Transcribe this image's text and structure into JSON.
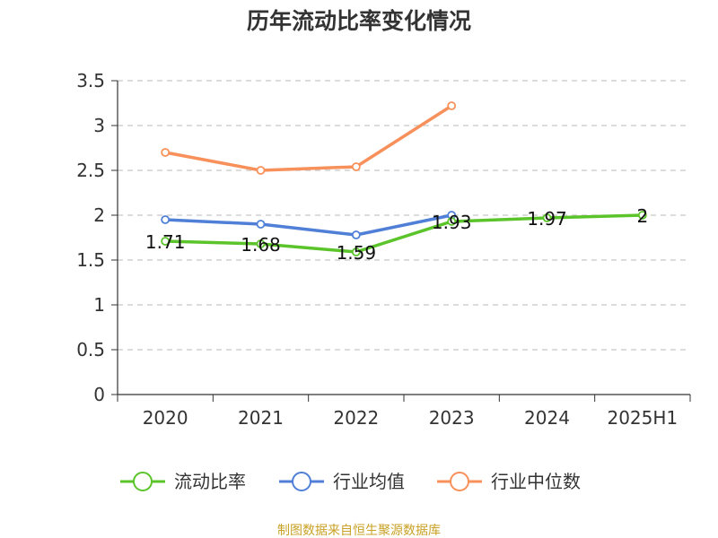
{
  "chart_data": {
    "type": "line",
    "title": "历年流动比率变化情况",
    "categories": [
      "2020",
      "2021",
      "2022",
      "2023",
      "2024",
      "2025H1"
    ],
    "ylim": [
      0,
      3.5
    ],
    "yticks": [
      "0",
      "0.5",
      "1",
      "1.5",
      "2",
      "2.5",
      "3",
      "3.5"
    ],
    "grid": true,
    "legend_position": "bottom",
    "series": [
      {
        "name": "流动比率",
        "color": "#5cc42b",
        "values": [
          1.71,
          1.68,
          1.59,
          1.93,
          1.97,
          2.0
        ],
        "labels": [
          "1.71",
          "1.68",
          "1.59",
          "1.93",
          "1.97",
          "2"
        ]
      },
      {
        "name": "行业均值",
        "color": "#4f7fd6",
        "values": [
          1.95,
          1.9,
          1.78,
          2.0,
          null,
          null
        ]
      },
      {
        "name": "行业中位数",
        "color": "#f7905a",
        "values": [
          2.7,
          2.5,
          2.54,
          3.22,
          null,
          null
        ]
      }
    ]
  },
  "footer": {
    "source": "制图数据来自恒生聚源数据库"
  }
}
